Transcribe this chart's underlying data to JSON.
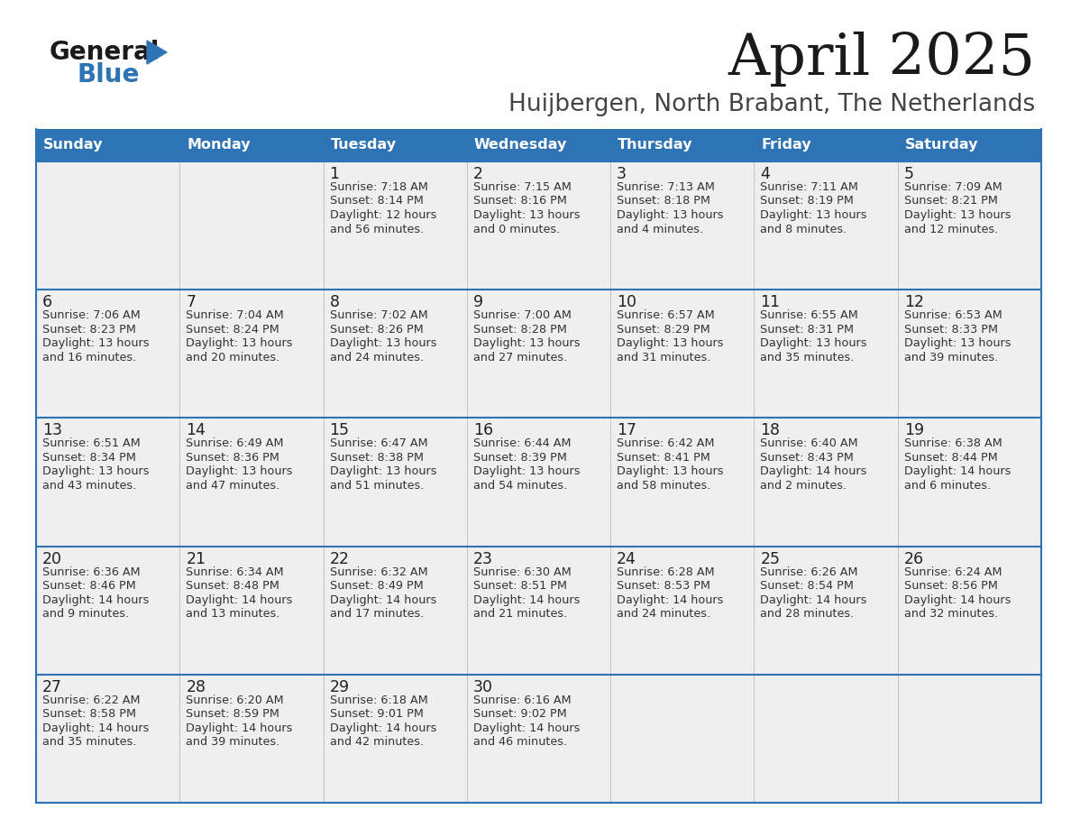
{
  "title": "April 2025",
  "subtitle": "Huijbergen, North Brabant, The Netherlands",
  "days_of_week": [
    "Sunday",
    "Monday",
    "Tuesday",
    "Wednesday",
    "Thursday",
    "Friday",
    "Saturday"
  ],
  "header_bg": "#2E74B5",
  "header_text_color": "#FFFFFF",
  "cell_bg_light": "#EFEFEF",
  "cell_border_color": "#2E74B5",
  "row_border_color": "#2E74B5",
  "vert_border_color": "#BBBBBB",
  "day_number_color": "#222222",
  "text_color": "#333333",
  "title_color": "#1a1a1a",
  "subtitle_color": "#444444",
  "logo_general_color": "#1a1a1a",
  "logo_blue_color": "#2E74B5",
  "weeks": [
    [
      {
        "day": null,
        "data": null
      },
      {
        "day": null,
        "data": null
      },
      {
        "day": 1,
        "data": {
          "sunrise": "7:18 AM",
          "sunset": "8:14 PM",
          "daylight_h": "12 hours",
          "daylight_m": "and 56 minutes."
        }
      },
      {
        "day": 2,
        "data": {
          "sunrise": "7:15 AM",
          "sunset": "8:16 PM",
          "daylight_h": "13 hours",
          "daylight_m": "and 0 minutes."
        }
      },
      {
        "day": 3,
        "data": {
          "sunrise": "7:13 AM",
          "sunset": "8:18 PM",
          "daylight_h": "13 hours",
          "daylight_m": "and 4 minutes."
        }
      },
      {
        "day": 4,
        "data": {
          "sunrise": "7:11 AM",
          "sunset": "8:19 PM",
          "daylight_h": "13 hours",
          "daylight_m": "and 8 minutes."
        }
      },
      {
        "day": 5,
        "data": {
          "sunrise": "7:09 AM",
          "sunset": "8:21 PM",
          "daylight_h": "13 hours",
          "daylight_m": "and 12 minutes."
        }
      }
    ],
    [
      {
        "day": 6,
        "data": {
          "sunrise": "7:06 AM",
          "sunset": "8:23 PM",
          "daylight_h": "13 hours",
          "daylight_m": "and 16 minutes."
        }
      },
      {
        "day": 7,
        "data": {
          "sunrise": "7:04 AM",
          "sunset": "8:24 PM",
          "daylight_h": "13 hours",
          "daylight_m": "and 20 minutes."
        }
      },
      {
        "day": 8,
        "data": {
          "sunrise": "7:02 AM",
          "sunset": "8:26 PM",
          "daylight_h": "13 hours",
          "daylight_m": "and 24 minutes."
        }
      },
      {
        "day": 9,
        "data": {
          "sunrise": "7:00 AM",
          "sunset": "8:28 PM",
          "daylight_h": "13 hours",
          "daylight_m": "and 27 minutes."
        }
      },
      {
        "day": 10,
        "data": {
          "sunrise": "6:57 AM",
          "sunset": "8:29 PM",
          "daylight_h": "13 hours",
          "daylight_m": "and 31 minutes."
        }
      },
      {
        "day": 11,
        "data": {
          "sunrise": "6:55 AM",
          "sunset": "8:31 PM",
          "daylight_h": "13 hours",
          "daylight_m": "and 35 minutes."
        }
      },
      {
        "day": 12,
        "data": {
          "sunrise": "6:53 AM",
          "sunset": "8:33 PM",
          "daylight_h": "13 hours",
          "daylight_m": "and 39 minutes."
        }
      }
    ],
    [
      {
        "day": 13,
        "data": {
          "sunrise": "6:51 AM",
          "sunset": "8:34 PM",
          "daylight_h": "13 hours",
          "daylight_m": "and 43 minutes."
        }
      },
      {
        "day": 14,
        "data": {
          "sunrise": "6:49 AM",
          "sunset": "8:36 PM",
          "daylight_h": "13 hours",
          "daylight_m": "and 47 minutes."
        }
      },
      {
        "day": 15,
        "data": {
          "sunrise": "6:47 AM",
          "sunset": "8:38 PM",
          "daylight_h": "13 hours",
          "daylight_m": "and 51 minutes."
        }
      },
      {
        "day": 16,
        "data": {
          "sunrise": "6:44 AM",
          "sunset": "8:39 PM",
          "daylight_h": "13 hours",
          "daylight_m": "and 54 minutes."
        }
      },
      {
        "day": 17,
        "data": {
          "sunrise": "6:42 AM",
          "sunset": "8:41 PM",
          "daylight_h": "13 hours",
          "daylight_m": "and 58 minutes."
        }
      },
      {
        "day": 18,
        "data": {
          "sunrise": "6:40 AM",
          "sunset": "8:43 PM",
          "daylight_h": "14 hours",
          "daylight_m": "and 2 minutes."
        }
      },
      {
        "day": 19,
        "data": {
          "sunrise": "6:38 AM",
          "sunset": "8:44 PM",
          "daylight_h": "14 hours",
          "daylight_m": "and 6 minutes."
        }
      }
    ],
    [
      {
        "day": 20,
        "data": {
          "sunrise": "6:36 AM",
          "sunset": "8:46 PM",
          "daylight_h": "14 hours",
          "daylight_m": "and 9 minutes."
        }
      },
      {
        "day": 21,
        "data": {
          "sunrise": "6:34 AM",
          "sunset": "8:48 PM",
          "daylight_h": "14 hours",
          "daylight_m": "and 13 minutes."
        }
      },
      {
        "day": 22,
        "data": {
          "sunrise": "6:32 AM",
          "sunset": "8:49 PM",
          "daylight_h": "14 hours",
          "daylight_m": "and 17 minutes."
        }
      },
      {
        "day": 23,
        "data": {
          "sunrise": "6:30 AM",
          "sunset": "8:51 PM",
          "daylight_h": "14 hours",
          "daylight_m": "and 21 minutes."
        }
      },
      {
        "day": 24,
        "data": {
          "sunrise": "6:28 AM",
          "sunset": "8:53 PM",
          "daylight_h": "14 hours",
          "daylight_m": "and 24 minutes."
        }
      },
      {
        "day": 25,
        "data": {
          "sunrise": "6:26 AM",
          "sunset": "8:54 PM",
          "daylight_h": "14 hours",
          "daylight_m": "and 28 minutes."
        }
      },
      {
        "day": 26,
        "data": {
          "sunrise": "6:24 AM",
          "sunset": "8:56 PM",
          "daylight_h": "14 hours",
          "daylight_m": "and 32 minutes."
        }
      }
    ],
    [
      {
        "day": 27,
        "data": {
          "sunrise": "6:22 AM",
          "sunset": "8:58 PM",
          "daylight_h": "14 hours",
          "daylight_m": "and 35 minutes."
        }
      },
      {
        "day": 28,
        "data": {
          "sunrise": "6:20 AM",
          "sunset": "8:59 PM",
          "daylight_h": "14 hours",
          "daylight_m": "and 39 minutes."
        }
      },
      {
        "day": 29,
        "data": {
          "sunrise": "6:18 AM",
          "sunset": "9:01 PM",
          "daylight_h": "14 hours",
          "daylight_m": "and 42 minutes."
        }
      },
      {
        "day": 30,
        "data": {
          "sunrise": "6:16 AM",
          "sunset": "9:02 PM",
          "daylight_h": "14 hours",
          "daylight_m": "and 46 minutes."
        }
      },
      {
        "day": null,
        "data": null
      },
      {
        "day": null,
        "data": null
      },
      {
        "day": null,
        "data": null
      }
    ]
  ]
}
